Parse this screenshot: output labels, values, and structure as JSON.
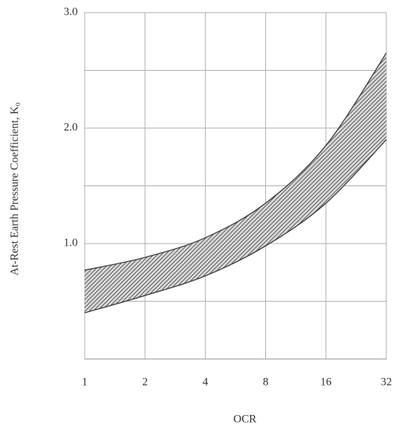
{
  "chart_data": {
    "type": "band",
    "x_label": "OCR",
    "y_label": "At-Rest Earth Pressure Coefficient, K₀",
    "x": [
      1,
      2,
      4,
      8,
      16,
      32
    ],
    "series": [
      {
        "color": "#444444",
        "values": [
          0.77,
          0.88,
          1.05,
          1.35,
          1.85,
          2.65
        ]
      },
      {
        "color": "#444444",
        "values": [
          0.4,
          0.55,
          0.72,
          0.98,
          1.35,
          1.9
        ]
      }
    ],
    "xlim": [
      1,
      32
    ],
    "xticks": [
      1,
      2,
      4,
      8,
      16,
      32
    ],
    "xscale": "log",
    "ylim": [
      0,
      3
    ],
    "yticks": [
      {
        "value": 1,
        "label": "1.0"
      },
      {
        "value": 2,
        "label": "2.0"
      },
      {
        "value": 3,
        "label": "3.0"
      }
    ],
    "ygrid": [
      0.5,
      1,
      1.5,
      2,
      2.5,
      3
    ],
    "grid": true
  }
}
